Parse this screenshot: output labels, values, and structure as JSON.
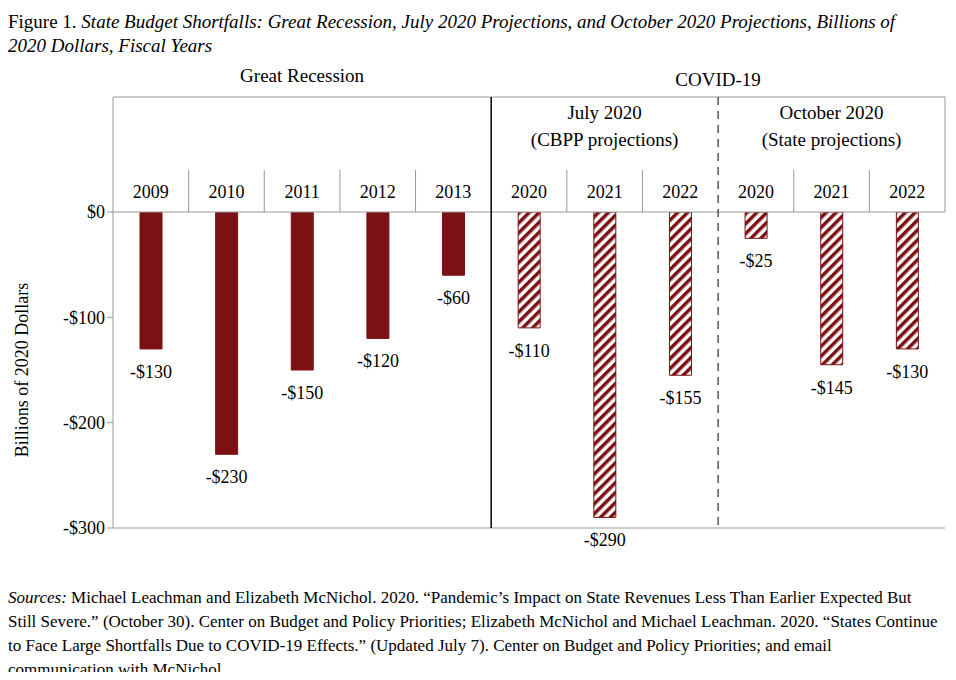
{
  "chart_data": {
    "type": "bar",
    "title": "Figure 1. State Budget Shortfalls: Great Recession, July 2020 Projections, and October 2020 Projections, Billions of 2020 Dollars, Fiscal Years",
    "y_label": "Billions of 2020 Dollars",
    "categories": [
      "2009",
      "2010",
      "2011",
      "2012",
      "2013",
      "2020",
      "2021",
      "2022",
      "2020",
      "2021",
      "2022"
    ],
    "series": [
      {
        "name": "Great Recession",
        "color": "#7b1113",
        "line_style": "solid",
        "values": [
          -130,
          -230,
          -150,
          -120,
          -60,
          null,
          null,
          null,
          null,
          null,
          null
        ],
        "value_labels": [
          "-$130",
          "-$230",
          "-$150",
          "-$120",
          "-$60",
          null,
          null,
          null,
          null,
          null,
          null
        ]
      },
      {
        "name": "July 2020 (CBPP projections)",
        "color": "#7b1113",
        "line_style": "hatched",
        "values": [
          null,
          null,
          null,
          null,
          null,
          -110,
          -290,
          -155,
          null,
          null,
          null
        ],
        "value_labels": [
          null,
          null,
          null,
          null,
          null,
          "-$110",
          "-$290",
          "-$155",
          null,
          null,
          null
        ]
      },
      {
        "name": "October 2020 (State projections)",
        "color": "#7b1113",
        "line_style": "hatched",
        "values": [
          null,
          null,
          null,
          null,
          null,
          null,
          null,
          null,
          -25,
          -145,
          -130
        ],
        "value_labels": [
          null,
          null,
          null,
          null,
          null,
          null,
          null,
          null,
          "-$25",
          "-$145",
          "-$130"
        ]
      }
    ],
    "annotations": [
      "COVID-19"
    ],
    "ylim": [
      -300,
      0
    ],
    "yticks": [
      {
        "value": 0,
        "label": "$0"
      },
      {
        "value": -100,
        "label": "-$100"
      },
      {
        "value": -200,
        "label": "-$200"
      },
      {
        "value": -300,
        "label": "-$300"
      }
    ],
    "data_labels": true,
    "grid": false,
    "source": "Sources: Michael Leachman and Elizabeth McNichol. 2020. “Pandemic’s Impact on State Revenues Less Than Earlier Expected But Still Severe.” (October 30). Center on Budget and Policy Priorities; Elizabeth McNichol and Michael Leachman. 2020. “States Continue to Face Large Shortfalls Due to COVID-19 Effects.” (Updated July 7). Center on Budget and Policy Priorities; and email communication with McNichol."
  }
}
